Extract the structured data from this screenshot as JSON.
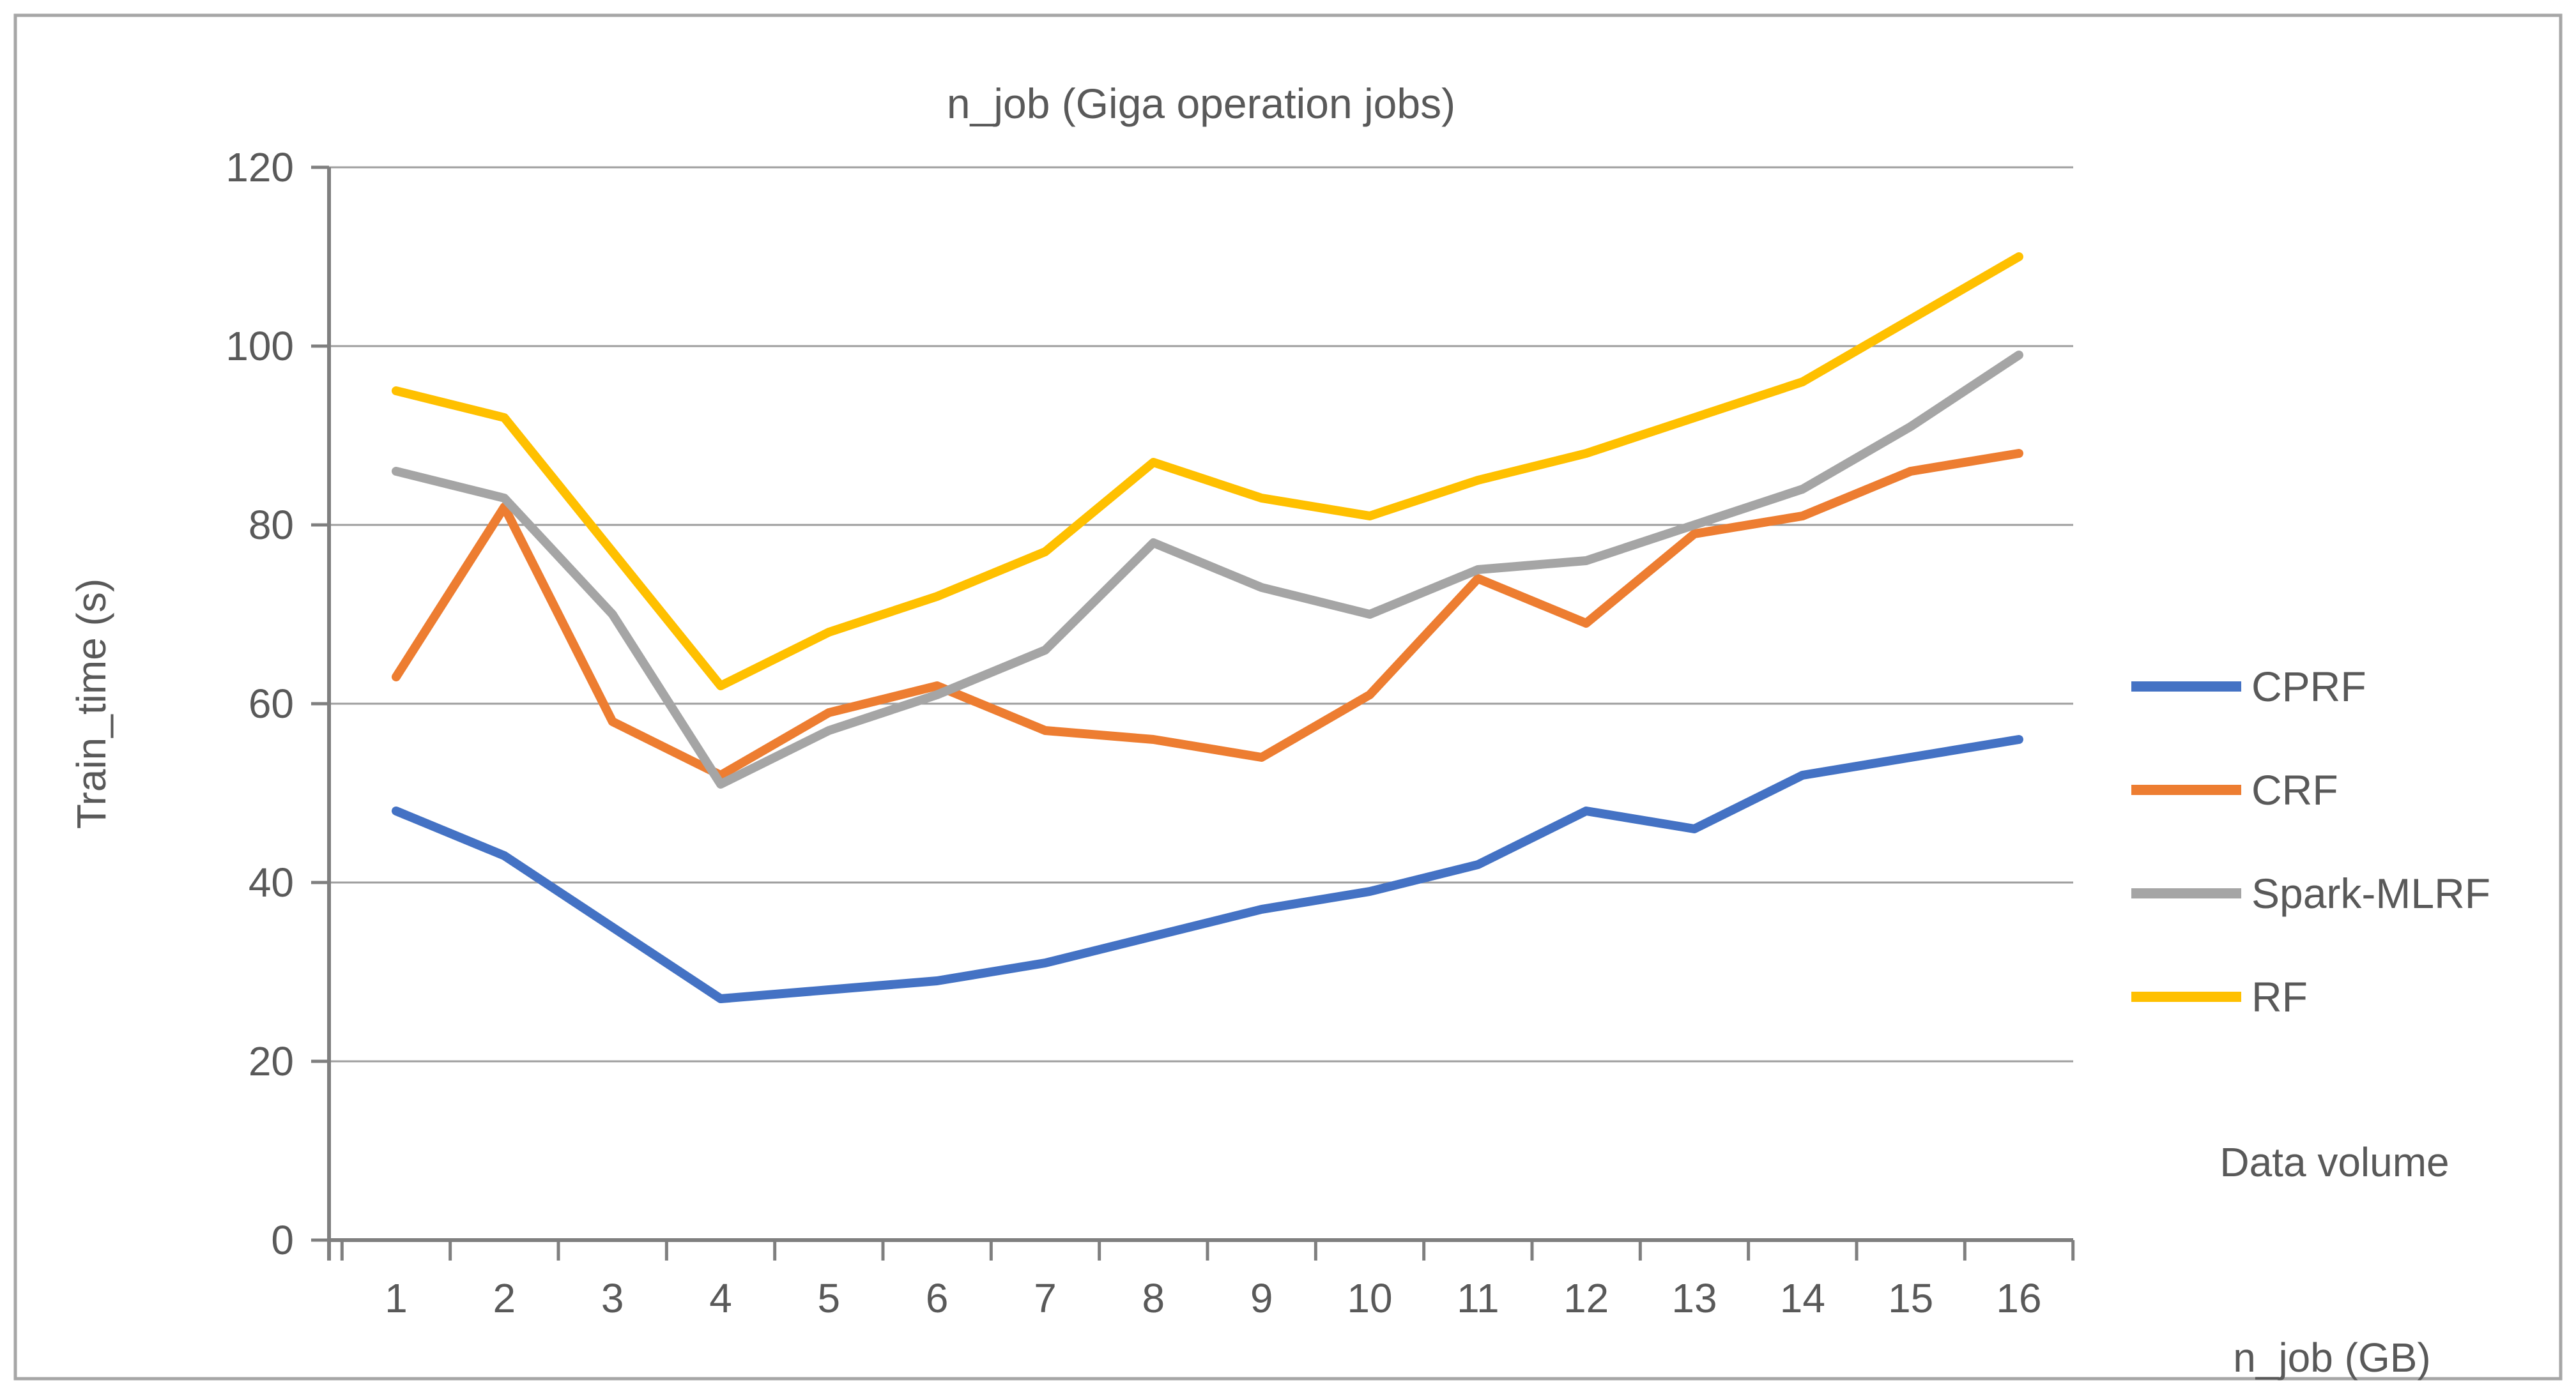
{
  "chart_data": {
    "type": "line",
    "title": "n_job (Giga operation jobs)",
    "xlabel": "n_job (GB)",
    "ylabel": "Train_time (s)",
    "x": [
      1,
      2,
      3,
      4,
      5,
      6,
      7,
      8,
      9,
      10,
      11,
      12,
      13,
      14,
      15,
      16
    ],
    "y_ticks": [
      0,
      20,
      40,
      60,
      80,
      100,
      120
    ],
    "ylim": [
      0,
      120
    ],
    "grid": "horizontal",
    "legend_position": "right",
    "series": [
      {
        "name": "CPRF",
        "color": "#4472C4",
        "values": [
          48,
          43,
          35,
          27,
          28,
          29,
          31,
          34,
          37,
          39,
          42,
          48,
          46,
          52,
          54,
          56
        ]
      },
      {
        "name": "CRF",
        "color": "#ED7D31",
        "values": [
          63,
          82,
          58,
          52,
          59,
          62,
          57,
          56,
          54,
          61,
          74,
          69,
          79,
          81,
          86,
          88
        ]
      },
      {
        "name": "Spark-MLRF",
        "color": "#A5A5A5",
        "values": [
          86,
          83,
          70,
          51,
          57,
          61,
          66,
          78,
          73,
          70,
          75,
          76,
          80,
          84,
          91,
          99
        ]
      },
      {
        "name": "RF",
        "color": "#FFC000",
        "values": [
          95,
          92,
          77,
          62,
          68,
          72,
          77,
          87,
          83,
          81,
          85,
          88,
          92,
          96,
          103,
          110
        ]
      }
    ],
    "right_labels": {
      "data_volume": "Data volume",
      "x_axis_unit": "n_job (GB)"
    },
    "style": {
      "grid_color": "#9e9e9e",
      "axis_color": "#7f7f7f",
      "text_color": "#595959",
      "frame_color": "#a6a6a6",
      "background": "#ffffff"
    }
  }
}
